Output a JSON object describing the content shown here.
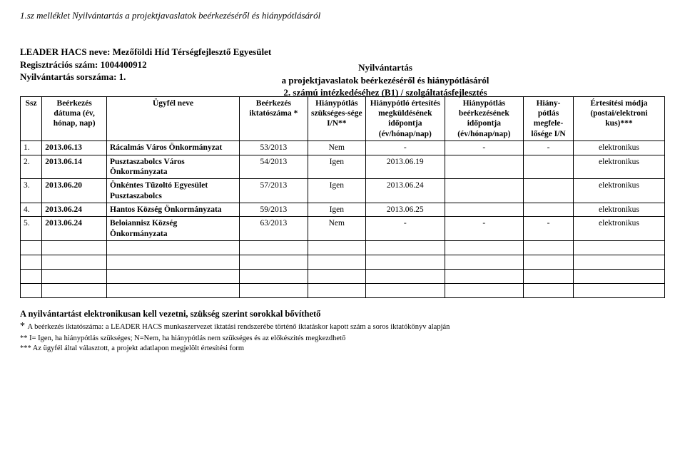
{
  "header": "1.sz melléklet Nyilvántartás a projektjavaslatok beérkezéséről és hiánypótlásáról",
  "center": {
    "line1": "Nyilvántartás",
    "line2": "a projektjavaslatok beérkezéséről és hiánypótlásáról",
    "line3": "2. számú intézkedéséhez (B1) / szolgáltatásfejlesztés"
  },
  "left": {
    "line1": "LEADER HACS neve: Mezőföldi Híd Térségfejlesztő Egyesület",
    "line2": "Regisztrációs szám: 1004400912",
    "line3": "Nyilvántartás sorszáma: 1."
  },
  "columns": [
    "Ssz",
    "Beérkezés dátuma\n\n(év, hónap, nap)",
    "Ügyfél neve",
    "Beérkezés iktatószáma *",
    "Hiánypótlás szükséges-sége\nI/N**",
    "Hiánypótló értesítés megküldésének időpontja\n(év/hónap/nap)",
    "Hiánypótlás beérkezésének időpontja\n\n(év/hónap/nap)",
    "Hiány-pótlás megfele-lősége\nI/N",
    "Értesítési módja (postai/elektroni kus)***"
  ],
  "rows": [
    {
      "ssz": "1.",
      "date": "2013.06.13",
      "name": "Rácalmás Város Önkormányzat",
      "iktat": "53/2013",
      "hp": "Nem",
      "ertes": "-",
      "beerk": "-",
      "megf": "-",
      "mod": "elektronikus"
    },
    {
      "ssz": "2.",
      "date": "2013.06.14",
      "name": "Pusztaszabolcs Város Önkormányzata",
      "iktat": "54/2013",
      "hp": "Igen",
      "ertes": "2013.06.19",
      "beerk": "",
      "megf": "",
      "mod": "elektronikus"
    },
    {
      "ssz": "3.",
      "date": "2013.06.20",
      "name": "Önkéntes Tűzoltó Egyesület Pusztaszabolcs",
      "iktat": "57/2013",
      "hp": "Igen",
      "ertes": "2013.06.24",
      "beerk": "",
      "megf": "",
      "mod": "elektronikus"
    },
    {
      "ssz": "4.",
      "date": "2013.06.24",
      "name": "Hantos Község Önkormányzata",
      "iktat": "59/2013",
      "hp": "Igen",
      "ertes": "2013.06.25",
      "beerk": "",
      "megf": "",
      "mod": "elektronikus"
    },
    {
      "ssz": "5.",
      "date": "2013.06.24",
      "name": "Beloiannisz Község Önkormányzata",
      "iktat": "63/2013",
      "hp": "Nem",
      "ertes": "-",
      "beerk": "-",
      "megf": "-",
      "mod": "elektronikus"
    }
  ],
  "empty_rows": 4,
  "footer": {
    "lead": "A nyilvántartást elektronikusan kell vezetni, szükség szerint sorokkal bővíthető",
    "star_prefix": "* ",
    "fn1": "A beérkezés iktatószáma: a LEADER HACS munkaszervezet iktatási rendszerébe történő iktatáskor kapott szám a soros iktatókönyv alapján",
    "fn2": "** I= Igen, ha hiánypótlás szükséges; N=Nem, ha hiánypótlás nem szükséges és az előkészítés megkezdhető",
    "fn3": "*** Az ügyfél által választott, a projekt adatlapon megjelölt értesítési form"
  }
}
